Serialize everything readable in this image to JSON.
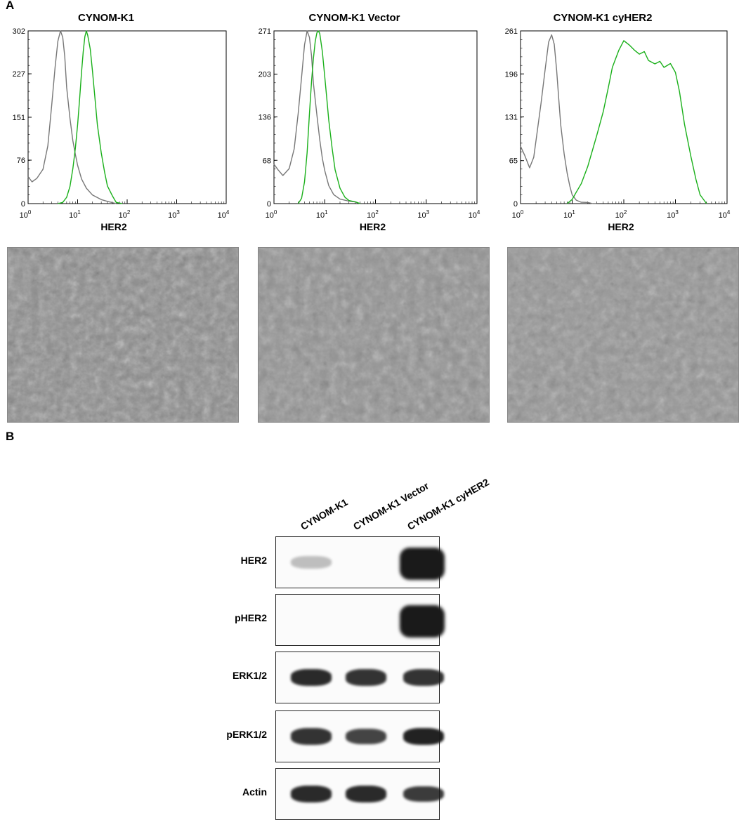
{
  "panels": {
    "a_label": "A",
    "b_label": "B"
  },
  "colors": {
    "isotype": "#777777",
    "stained": "#1ab01a",
    "band": "#1a1a1a"
  },
  "chart_data": [
    {
      "type": "line",
      "title": "CYNOM-K1",
      "xlabel": "HER2",
      "xscale": "log",
      "xlim": [
        1,
        10000
      ],
      "xticks": [
        "10^0",
        "10^1",
        "10^2",
        "10^3",
        "10^4"
      ],
      "yticks": [
        0,
        76,
        151,
        227,
        302
      ],
      "ylim": [
        0,
        302
      ],
      "series": [
        {
          "color": "#777777",
          "x": [
            1,
            1.2,
            1.5,
            2,
            2.5,
            3,
            3.5,
            4,
            4.5,
            5,
            5.5,
            6,
            7,
            8,
            9,
            10,
            12,
            15,
            20,
            30,
            40,
            60
          ],
          "y": [
            45,
            40,
            45,
            60,
            100,
            170,
            240,
            285,
            302,
            290,
            255,
            205,
            150,
            110,
            85,
            65,
            45,
            28,
            15,
            6,
            2,
            0
          ]
        },
        {
          "color": "#1ab01a",
          "x": [
            4,
            5,
            6,
            7,
            8,
            9,
            10,
            11,
            12,
            13,
            14,
            15,
            16,
            18,
            20,
            22,
            25,
            30,
            35,
            40,
            50,
            60,
            80
          ],
          "y": [
            0,
            4,
            12,
            30,
            60,
            95,
            140,
            185,
            230,
            265,
            290,
            302,
            295,
            270,
            230,
            190,
            140,
            90,
            55,
            30,
            12,
            4,
            0
          ]
        }
      ]
    },
    {
      "type": "line",
      "title": "CYNOM-K1 Vector",
      "xlabel": "HER2",
      "xscale": "log",
      "xlim": [
        1,
        10000
      ],
      "xticks": [
        "10^0",
        "10^1",
        "10^2",
        "10^3",
        "10^4"
      ],
      "yticks": [
        0,
        68,
        136,
        203,
        271
      ],
      "ylim": [
        0,
        271
      ],
      "series": [
        {
          "color": "#777777",
          "x": [
            1,
            1.2,
            1.5,
            2,
            2.5,
            3,
            3.5,
            4,
            4.5,
            5,
            5.5,
            6,
            7,
            8,
            9,
            10,
            12,
            15,
            20,
            30,
            40,
            50
          ],
          "y": [
            60,
            55,
            45,
            55,
            85,
            140,
            200,
            250,
            271,
            260,
            230,
            190,
            140,
            100,
            70,
            50,
            30,
            15,
            7,
            3,
            1,
            0
          ]
        },
        {
          "color": "#1ab01a",
          "x": [
            3,
            3.5,
            4,
            4.5,
            5,
            5.5,
            6,
            6.5,
            7,
            7.5,
            8,
            9,
            10,
            11,
            12,
            14,
            16,
            20,
            25,
            30,
            40,
            50
          ],
          "y": [
            0,
            10,
            35,
            80,
            140,
            190,
            230,
            255,
            268,
            271,
            265,
            240,
            200,
            165,
            130,
            85,
            55,
            25,
            10,
            4,
            1,
            0
          ]
        }
      ]
    },
    {
      "type": "line",
      "title": "CYNOM-K1 cyHER2",
      "xlabel": "HER2",
      "xscale": "log",
      "xlim": [
        1,
        10000
      ],
      "xticks": [
        "10^0",
        "10^1",
        "10^2",
        "10^3",
        "10^4"
      ],
      "yticks": [
        0,
        65,
        131,
        196,
        261
      ],
      "ylim": [
        0,
        261
      ],
      "series": [
        {
          "color": "#777777",
          "x": [
            1,
            1.2,
            1.5,
            1.8,
            2,
            2.5,
            3,
            3.5,
            4,
            4.5,
            5,
            5.5,
            6,
            7,
            8,
            9,
            10,
            12,
            15,
            20,
            25,
            30
          ],
          "y": [
            85,
            75,
            55,
            70,
            95,
            150,
            205,
            245,
            255,
            240,
            200,
            160,
            120,
            75,
            45,
            25,
            15,
            6,
            2,
            1,
            0,
            0
          ]
        },
        {
          "color": "#1ab01a",
          "x": [
            8,
            10,
            12,
            15,
            20,
            25,
            30,
            40,
            50,
            60,
            80,
            100,
            130,
            160,
            200,
            250,
            300,
            400,
            500,
            600,
            800,
            1000,
            1200,
            1500,
            2000,
            2500,
            3000,
            4000
          ],
          "y": [
            0,
            8,
            18,
            30,
            55,
            80,
            105,
            140,
            175,
            205,
            230,
            248,
            240,
            232,
            225,
            228,
            218,
            212,
            215,
            205,
            210,
            200,
            170,
            120,
            70,
            35,
            15,
            0
          ]
        }
      ]
    }
  ],
  "blot": {
    "lanes": [
      "CYNOM-K1",
      "CYNOM-K1 Vector",
      "CYNOM-K1 cyHER2"
    ],
    "rows": [
      {
        "label": "HER2",
        "bands": [
          0.02,
          0.0,
          1.0
        ]
      },
      {
        "label": "pHER2",
        "bands": [
          0.0,
          0.0,
          1.0
        ]
      },
      {
        "label": "ERK1/2",
        "bands": [
          0.9,
          0.85,
          0.85
        ]
      },
      {
        "label": "pERK1/2",
        "bands": [
          0.85,
          0.75,
          0.95
        ]
      },
      {
        "label": "Actin",
        "bands": [
          0.9,
          0.9,
          0.8
        ]
      }
    ]
  }
}
